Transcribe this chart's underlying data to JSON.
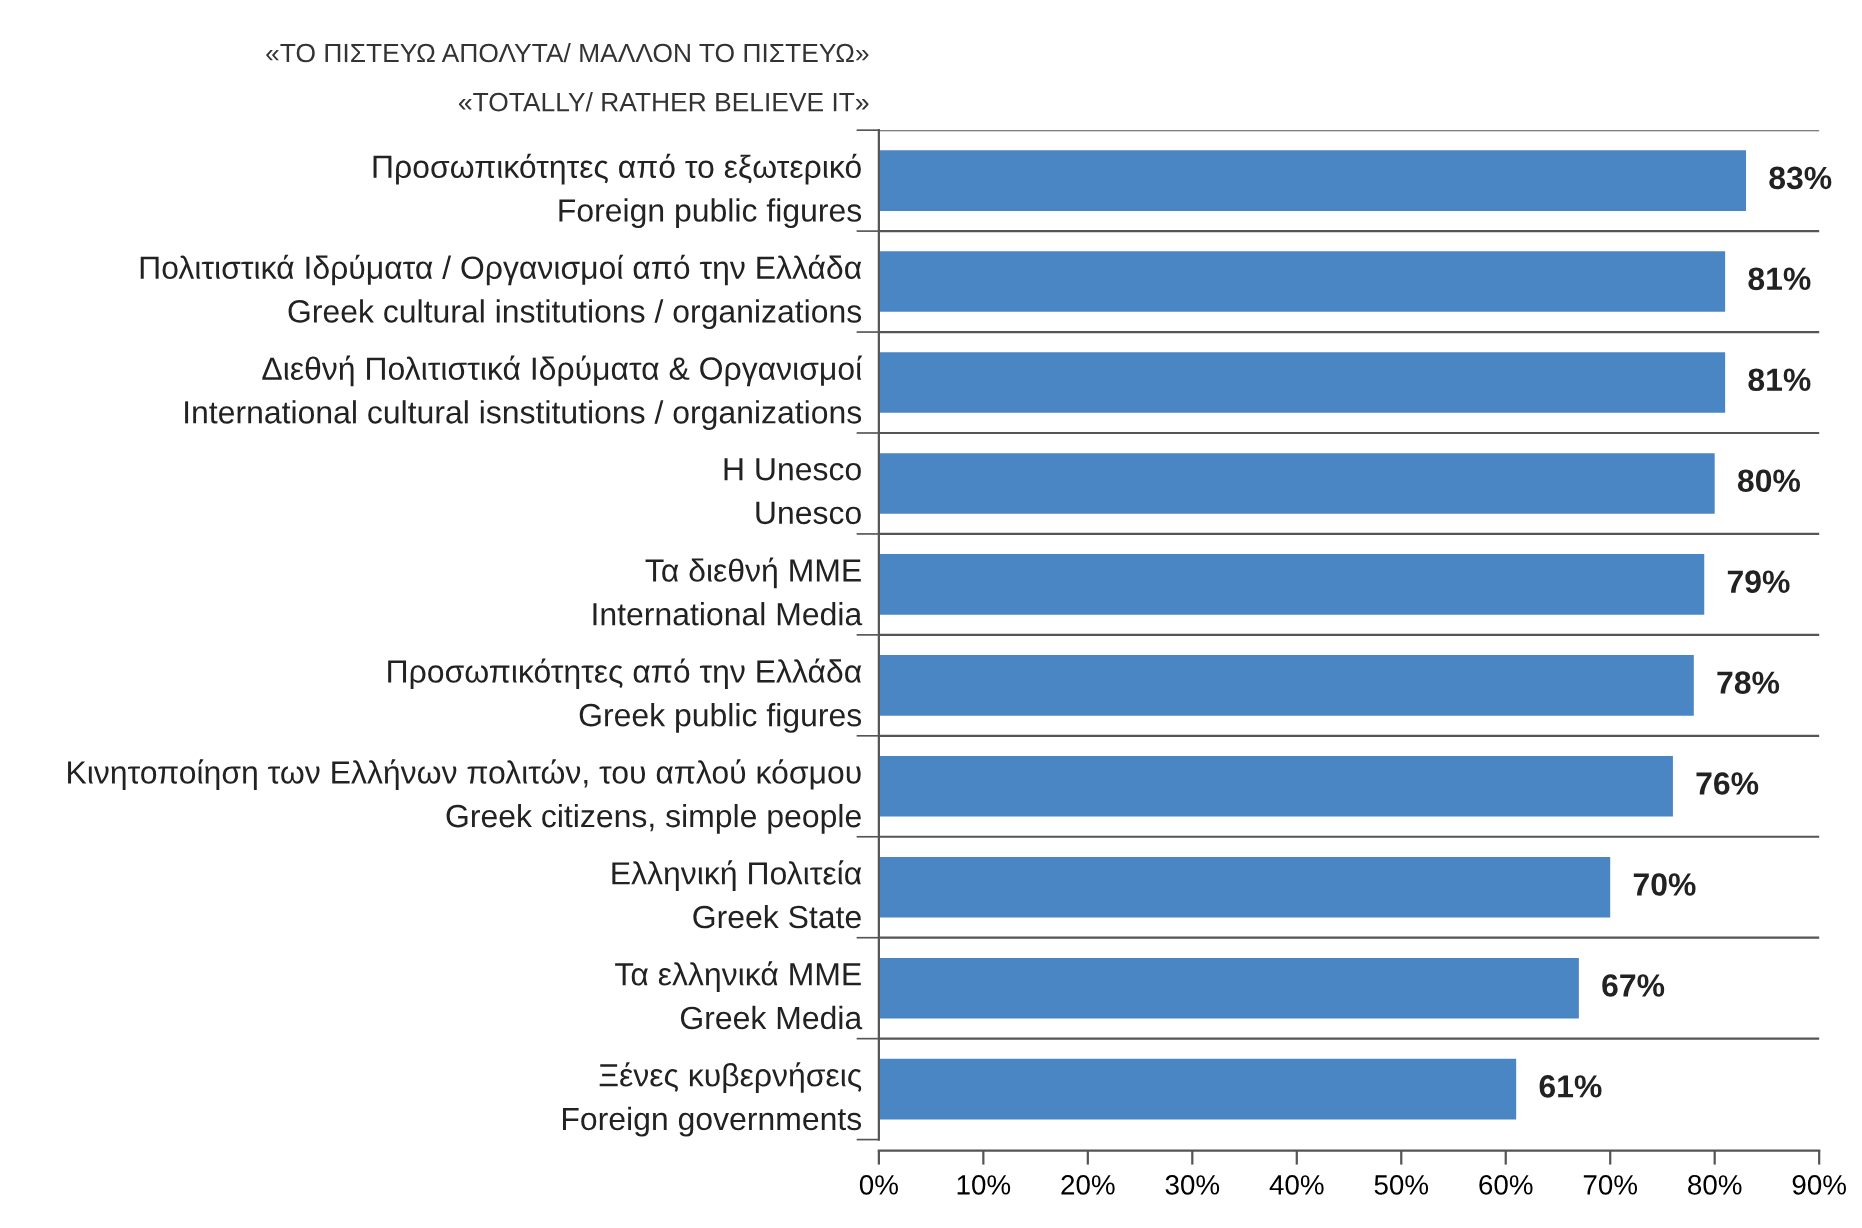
{
  "chart_data": {
    "type": "bar",
    "orientation": "horizontal",
    "title": "«ΤΟ ΠΙΣΤΕΥΩ ΑΠΟΛΥΤΑ/ ΜΑΛΛΟΝ ΤΟ ΠΙΣΤΕΥΩ»",
    "subtitle": "«TOTALLY/ RATHER BELIEVE IT»",
    "categories": [
      "Προσωπικότητες από το εξωτερικό\nForeign public figures",
      "Πολιτιστικά Ιδρύματα / Οργανισμοί από την Ελλάδα\nGreek cultural institutions / organizations",
      "Διεθνή Πολιτιστικά Ιδρύματα & Οργανισμοί\nInternational cultural isnstitutions / organizations",
      "Η Unesco\nUnesco",
      "Τα διεθνή ΜΜΕ\nInternational Media",
      "Προσωπικότητες από την Ελλάδα\nGreek public figures",
      "Κινητοποίηση των Ελλήνων πολιτών, του απλού κόσμου\nGreek citizens, simple people",
      "Ελληνική Πολιτεία\nGreek State",
      "Τα ελληνικά ΜΜΕ\nGreek Media",
      "Ξένες κυβερνήσεις\nForeign governments"
    ],
    "values": [
      83,
      81,
      81,
      80,
      79,
      78,
      76,
      70,
      67,
      61
    ],
    "value_labels": [
      "83%",
      "81%",
      "81%",
      "80%",
      "79%",
      "78%",
      "76%",
      "70%",
      "67%",
      "61%"
    ],
    "color": "#4a86c4",
    "xlim": [
      0,
      90
    ],
    "xticks": [
      {
        "value": 0,
        "label": "0%"
      },
      {
        "value": 10,
        "label": "10%"
      },
      {
        "value": 20,
        "label": "20%"
      },
      {
        "value": 30,
        "label": "30%"
      },
      {
        "value": 40,
        "label": "40%"
      },
      {
        "value": 50,
        "label": "50%"
      },
      {
        "value": 60,
        "label": "60%"
      },
      {
        "value": 70,
        "label": "70%"
      },
      {
        "value": 80,
        "label": "80%"
      },
      {
        "value": 90,
        "label": "90%"
      }
    ],
    "grid": "y"
  }
}
